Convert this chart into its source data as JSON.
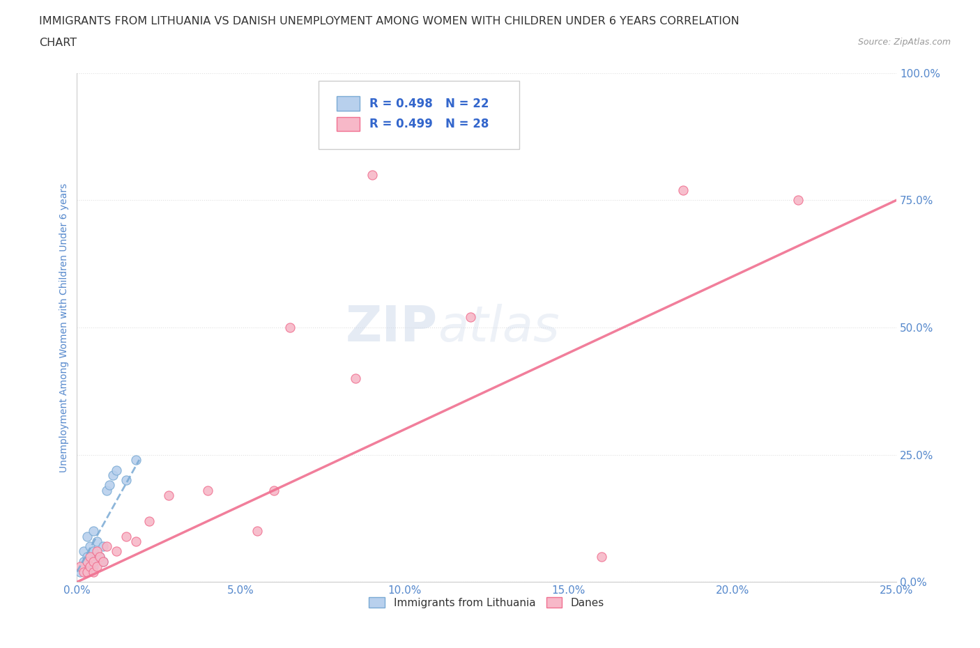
{
  "title_line1": "IMMIGRANTS FROM LITHUANIA VS DANISH UNEMPLOYMENT AMONG WOMEN WITH CHILDREN UNDER 6 YEARS CORRELATION",
  "title_line2": "CHART",
  "source_text": "Source: ZipAtlas.com",
  "ylabel": "Unemployment Among Women with Children Under 6 years",
  "xlim": [
    0.0,
    0.25
  ],
  "ylim": [
    0.0,
    1.0
  ],
  "xticks": [
    0.0,
    0.05,
    0.1,
    0.15,
    0.2,
    0.25
  ],
  "yticks": [
    0.0,
    0.25,
    0.5,
    0.75,
    1.0
  ],
  "xtick_labels": [
    "0.0%",
    "5.0%",
    "10.0%",
    "15.0%",
    "20.0%",
    "25.0%"
  ],
  "ytick_labels": [
    "0.0%",
    "25.0%",
    "50.0%",
    "75.0%",
    "100.0%"
  ],
  "blue_R": 0.498,
  "blue_N": 22,
  "pink_R": 0.499,
  "pink_N": 28,
  "blue_color": "#b8d0ed",
  "pink_color": "#f7b8c8",
  "blue_edge_color": "#7aaad4",
  "pink_edge_color": "#f07090",
  "blue_line_color": "#7aaad4",
  "pink_line_color": "#f07090",
  "legend_label_blue": "Immigrants from Lithuania",
  "legend_label_pink": "Danes",
  "watermark_zip": "ZIP",
  "watermark_atlas": "atlas",
  "blue_scatter_x": [
    0.001,
    0.002,
    0.002,
    0.003,
    0.003,
    0.003,
    0.004,
    0.004,
    0.005,
    0.005,
    0.005,
    0.006,
    0.006,
    0.007,
    0.008,
    0.008,
    0.009,
    0.01,
    0.011,
    0.012,
    0.015,
    0.018
  ],
  "blue_scatter_y": [
    0.02,
    0.04,
    0.06,
    0.02,
    0.05,
    0.09,
    0.03,
    0.07,
    0.03,
    0.06,
    0.1,
    0.05,
    0.08,
    0.05,
    0.04,
    0.07,
    0.18,
    0.19,
    0.21,
    0.22,
    0.2,
    0.24
  ],
  "pink_scatter_x": [
    0.001,
    0.002,
    0.003,
    0.003,
    0.004,
    0.004,
    0.005,
    0.005,
    0.006,
    0.006,
    0.007,
    0.008,
    0.009,
    0.012,
    0.015,
    0.018,
    0.022,
    0.028,
    0.04,
    0.055,
    0.06,
    0.065,
    0.085,
    0.09,
    0.12,
    0.16,
    0.185,
    0.22
  ],
  "pink_scatter_y": [
    0.03,
    0.02,
    0.02,
    0.04,
    0.03,
    0.05,
    0.02,
    0.04,
    0.03,
    0.06,
    0.05,
    0.04,
    0.07,
    0.06,
    0.09,
    0.08,
    0.12,
    0.17,
    0.18,
    0.1,
    0.18,
    0.5,
    0.4,
    0.8,
    0.52,
    0.05,
    0.77,
    0.75
  ],
  "blue_trend_x": [
    0.0,
    0.019
  ],
  "blue_trend_y": [
    0.02,
    0.24
  ],
  "pink_trend_x": [
    0.0,
    0.25
  ],
  "pink_trend_y": [
    0.0,
    0.75
  ],
  "background_color": "#ffffff",
  "grid_color": "#e0e0e0",
  "axis_label_color": "#5588cc",
  "tick_label_color": "#5588cc",
  "title_color": "#333333",
  "r_n_color": "#3366cc",
  "source_color": "#999999"
}
